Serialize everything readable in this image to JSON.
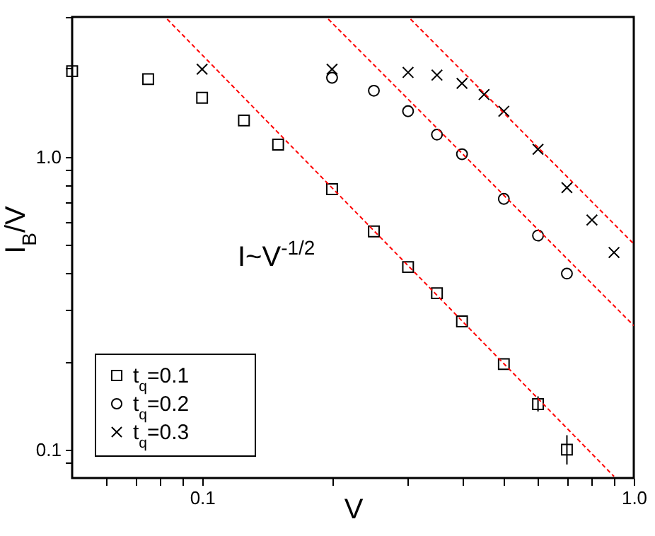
{
  "chart_data": {
    "type": "scatter",
    "xlabel": "V",
    "ylabel": "I$_{B}$/V",
    "log": "xy",
    "grid": false,
    "legend": "bottom left",
    "xlim": [
      0.05,
      1.0
    ],
    "ylim": [
      0.08,
      3
    ],
    "xticks": [
      {
        "value": 0.06,
        "label": null
      },
      {
        "value": 0.07,
        "label": null
      },
      {
        "value": 0.08,
        "label": null
      },
      {
        "value": 0.09,
        "label": null
      },
      {
        "value": 0.1,
        "label": "0.1"
      },
      {
        "value": 0.2,
        "label": null
      },
      {
        "value": 0.3,
        "label": null
      },
      {
        "value": 0.4,
        "label": null
      },
      {
        "value": 0.5,
        "label": null
      },
      {
        "value": 0.6,
        "label": null
      },
      {
        "value": 0.7,
        "label": null
      },
      {
        "value": 0.8,
        "label": null
      },
      {
        "value": 0.9,
        "label": null
      },
      {
        "value": 1,
        "label": "1.0"
      }
    ],
    "yticks": [
      {
        "value": 0.09,
        "label": null
      },
      {
        "value": 0.1,
        "label": "0.1"
      },
      {
        "value": 0.2,
        "label": null
      },
      {
        "value": 0.3,
        "label": null
      },
      {
        "value": 0.4,
        "label": null
      },
      {
        "value": 0.5,
        "label": null
      },
      {
        "value": 0.6,
        "label": null
      },
      {
        "value": 0.7,
        "label": null
      },
      {
        "value": 0.8,
        "label": null
      },
      {
        "value": 0.9,
        "label": null
      },
      {
        "value": 1,
        "label": "1.0"
      },
      {
        "value": 2,
        "label": null
      },
      {
        "value": 3,
        "label": null
      }
    ],
    "annotations": [
      "I~V$^{-1/2}$"
    ],
    "series": [
      {
        "name": "t$_{q}$=0.1",
        "marker": "square",
        "color": "#000000",
        "x": [
          0.05,
          0.075,
          0.1,
          0.125,
          0.15,
          0.2,
          0.25,
          0.3,
          0.35,
          0.4,
          0.5,
          0.6,
          0.7
        ],
        "values": [
          1.96,
          1.84,
          1.59,
          1.33,
          1.1,
          0.775,
          0.556,
          0.42,
          0.342,
          0.274,
          0.196,
          0.143,
          0.1
        ],
        "errors": [
          null,
          null,
          null,
          null,
          null,
          null,
          null,
          null,
          null,
          null,
          null,
          [
            0.135,
            0.152
          ],
          [
            0.089,
            0.112
          ]
        ]
      },
      {
        "name": "t$_{q}$=0.2",
        "marker": "circle",
        "color": "#000000",
        "x": [
          0.2,
          0.25,
          0.3,
          0.35,
          0.4,
          0.5,
          0.6,
          0.7
        ],
        "values": [
          1.86,
          1.68,
          1.43,
          1.19,
          1.02,
          0.718,
          0.538,
          0.399
        ]
      },
      {
        "name": "t$_{q}$=0.3",
        "marker": "cross",
        "color": "#000000",
        "x": [
          0.1,
          0.2,
          0.3,
          0.35,
          0.4,
          0.45,
          0.5,
          0.6,
          0.7,
          0.8,
          0.9
        ],
        "values": [
          1.99,
          1.99,
          1.94,
          1.9,
          1.78,
          1.63,
          1.43,
          1.06,
          0.784,
          0.608,
          0.471
        ]
      },
      {
        "type": "line",
        "line_style": "dashed",
        "color": "#ff0000",
        "x": [
          0.083,
          0.9
        ],
        "values": [
          2.95,
          0.081
        ]
      },
      {
        "type": "line",
        "line_style": "dashed",
        "color": "#ff0000",
        "x": [
          0.196,
          1.0
        ],
        "values": [
          2.95,
          0.265
        ]
      },
      {
        "type": "line",
        "line_style": "dashed",
        "color": "#ff0000",
        "x": [
          0.304,
          1.0
        ],
        "values": [
          2.95,
          0.504
        ]
      }
    ]
  }
}
